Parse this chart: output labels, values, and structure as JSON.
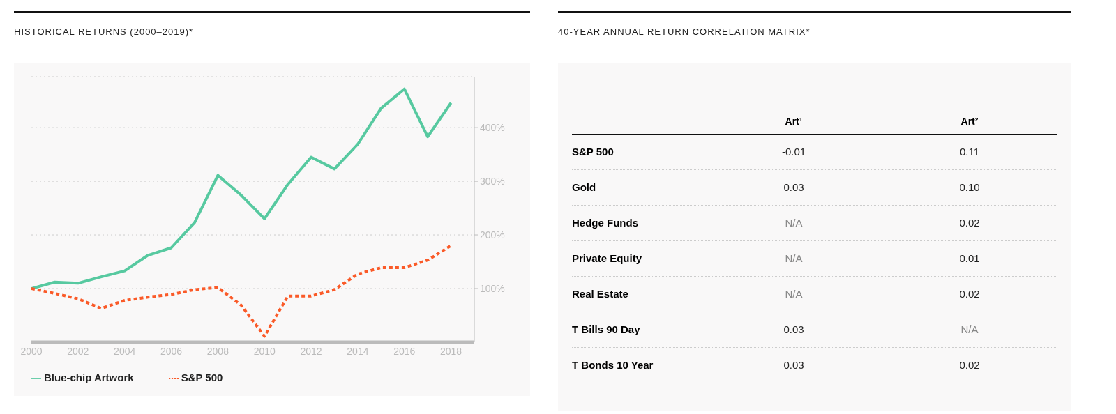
{
  "chart_data": [
    {
      "type": "line",
      "title": "HISTORICAL RETURNS (2000–2019)*",
      "x": [
        2000,
        2001,
        2002,
        2003,
        2004,
        2005,
        2006,
        2007,
        2008,
        2009,
        2010,
        2011,
        2012,
        2013,
        2014,
        2015,
        2016,
        2017,
        2018
      ],
      "xlim": [
        2000,
        2019
      ],
      "xticks": [
        2000,
        2002,
        2004,
        2006,
        2008,
        2010,
        2012,
        2014,
        2016,
        2018
      ],
      "ylim": [
        0,
        495
      ],
      "yticks": [
        {
          "value": 100,
          "label": "100%"
        },
        {
          "value": 200,
          "label": "200%"
        },
        {
          "value": 300,
          "label": "300%"
        },
        {
          "value": 400,
          "label": "400%"
        }
      ],
      "grid": "y",
      "legend": "bottom",
      "marker": "none",
      "series": [
        {
          "name": "Blue-chip Artwork",
          "color": "#57c9a0",
          "line_style": "solid",
          "values": [
            100,
            112,
            110,
            122,
            133,
            162,
            176,
            223,
            311,
            274,
            230,
            294,
            345,
            323,
            369,
            436,
            472,
            383,
            446
          ]
        },
        {
          "name": "S&P 500",
          "color": "#fa5a28",
          "line_style": "dotted",
          "values": [
            100,
            91,
            81,
            63,
            78,
            84,
            89,
            98,
            102,
            69,
            11,
            86,
            86,
            98,
            127,
            139,
            139,
            153,
            180
          ]
        }
      ]
    },
    {
      "type": "heatmap",
      "title": "40-YEAR ANNUAL RETURN CORRELATION MATRIX*",
      "categories": [
        "Art¹",
        "Art²"
      ],
      "y_categories": [
        "S&P 500",
        "Gold",
        "Hedge Funds",
        "Private Equity",
        "Real Estate",
        "T Bills 90 Day",
        "T Bonds 10 Year"
      ],
      "cells": [
        [
          -0.01,
          0.11
        ],
        [
          0.03,
          0.1
        ],
        [
          null,
          0.02
        ],
        [
          null,
          0.01
        ],
        [
          null,
          0.02
        ],
        [
          0.03,
          null
        ],
        [
          0.03,
          0.02
        ]
      ],
      "cell_labels": [
        [
          "-0.01",
          "0.11"
        ],
        [
          "0.03",
          "0.10"
        ],
        [
          "N/A",
          "0.02"
        ],
        [
          "N/A",
          "0.01"
        ],
        [
          "N/A",
          "0.02"
        ],
        [
          "0.03",
          "N/A"
        ],
        [
          "0.03",
          "0.02"
        ]
      ]
    }
  ]
}
